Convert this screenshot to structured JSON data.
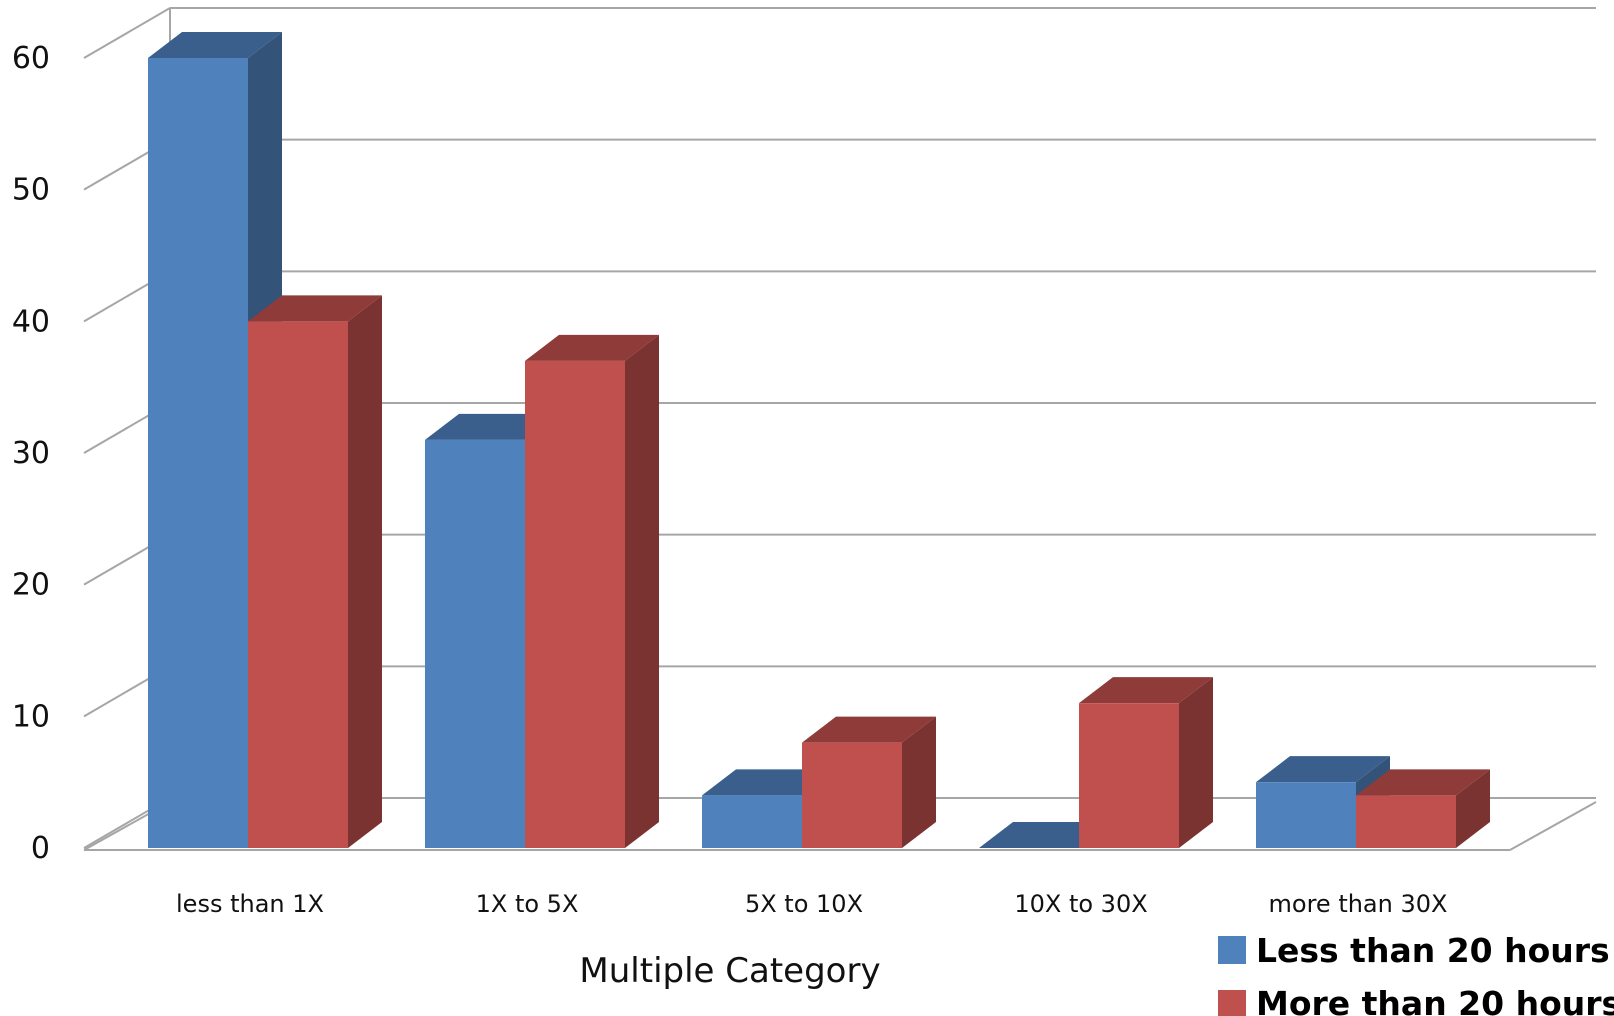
{
  "chart_data": {
    "type": "bar",
    "style": "3d-clustered-column",
    "title": "",
    "xlabel": "Multiple Category",
    "ylabel": "",
    "categories": [
      "less than 1X",
      "1X to 5X",
      "5X to 10X",
      "10X to 30X",
      "more than 30X"
    ],
    "series": [
      {
        "name": "Less than 20 hours",
        "color": "#4F81BD",
        "values": [
          60,
          31,
          4,
          0,
          5
        ]
      },
      {
        "name": "More than 20 hours",
        "color": "#C0504D",
        "values": [
          40,
          37,
          8,
          11,
          4
        ]
      }
    ],
    "yticks": [
      0,
      10,
      20,
      30,
      40,
      50,
      60
    ],
    "ylim": [
      0,
      60
    ],
    "grid": true,
    "legend": "bottom-right"
  }
}
